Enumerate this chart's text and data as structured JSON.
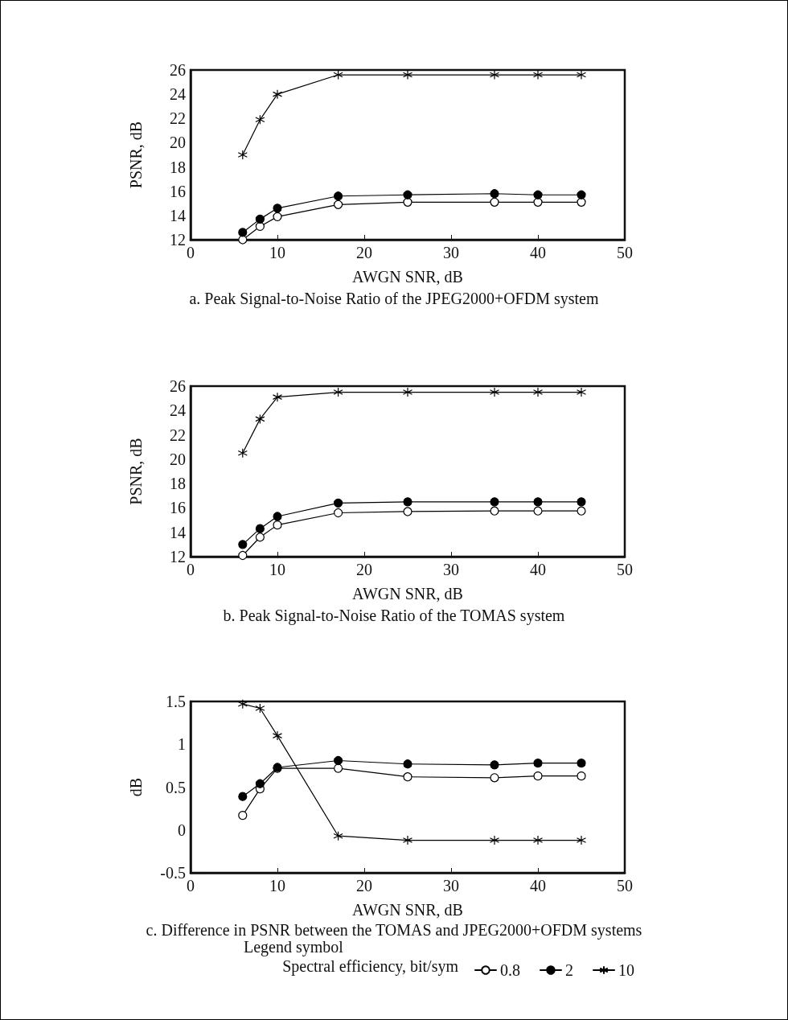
{
  "chart_data": [
    {
      "type": "line",
      "title": "a. Peak Signal-to-Noise Ratio of the JPEG2000+OFDM system",
      "xlabel": "AWGN SNR, dB",
      "ylabel": "PSNR, dB",
      "x": [
        6,
        8,
        10,
        17,
        25,
        35,
        40,
        45
      ],
      "xlim": [
        0,
        50
      ],
      "xticks": [
        0,
        10,
        20,
        30,
        40,
        50
      ],
      "ylim": [
        12,
        26
      ],
      "yticks": [
        12,
        14,
        16,
        18,
        20,
        22,
        24,
        26
      ],
      "grid": false,
      "legend": false,
      "line_style": "solid",
      "series": [
        {
          "color": "#ffffff",
          "marker": "circle",
          "values": [
            12.0,
            13.1,
            13.9,
            14.9,
            15.1,
            15.1,
            15.1,
            15.1
          ]
        },
        {
          "color": "#000000",
          "marker": "circle",
          "values": [
            12.6,
            13.7,
            14.6,
            15.6,
            15.7,
            15.8,
            15.7,
            15.7
          ]
        },
        {
          "color": "#000000",
          "marker": "cross",
          "values": [
            19.0,
            21.9,
            24.0,
            25.6,
            25.6,
            25.6,
            25.6,
            25.6
          ]
        }
      ]
    },
    {
      "type": "line",
      "title": "b. Peak Signal-to-Noise Ratio of the TOMAS system",
      "xlabel": "AWGN SNR, dB",
      "ylabel": "PSNR, dB",
      "x": [
        6,
        8,
        10,
        17,
        25,
        35,
        40,
        45
      ],
      "xlim": [
        0,
        50
      ],
      "xticks": [
        0,
        10,
        20,
        30,
        40,
        50
      ],
      "ylim": [
        12,
        26
      ],
      "yticks": [
        12,
        14,
        16,
        18,
        20,
        22,
        24,
        26
      ],
      "grid": false,
      "legend": false,
      "line_style": "solid",
      "series": [
        {
          "color": "#ffffff",
          "marker": "circle",
          "values": [
            12.1,
            13.6,
            14.6,
            15.6,
            15.7,
            15.75,
            15.75,
            15.75
          ]
        },
        {
          "color": "#000000",
          "marker": "circle",
          "values": [
            13.0,
            14.3,
            15.3,
            16.4,
            16.5,
            16.5,
            16.5,
            16.5
          ]
        },
        {
          "color": "#000000",
          "marker": "cross",
          "values": [
            20.5,
            23.3,
            25.1,
            25.5,
            25.5,
            25.5,
            25.5,
            25.5
          ]
        }
      ]
    },
    {
      "type": "line",
      "title": "c. Difference in PSNR between the TOMAS and JPEG2000+OFDM systems",
      "xlabel": "AWGN SNR, dB",
      "ylabel": "dB",
      "x": [
        6,
        8,
        10,
        17,
        25,
        35,
        40,
        45
      ],
      "xlim": [
        0,
        50
      ],
      "xticks": [
        0,
        10,
        20,
        30,
        40,
        50
      ],
      "ylim": [
        -0.5,
        1.5
      ],
      "yticks": [
        -0.5,
        0,
        0.5,
        1,
        1.5
      ],
      "grid": false,
      "legend": "bottom",
      "legend_title": "Spectral efficiency, bit/sym",
      "annotations": [
        "Legend symbol"
      ],
      "line_style": "solid",
      "series": [
        {
          "name": "0.8",
          "color": "#ffffff",
          "marker": "circle",
          "values": [
            0.17,
            0.48,
            0.72,
            0.72,
            0.62,
            0.61,
            0.63,
            0.63
          ]
        },
        {
          "name": "2",
          "color": "#000000",
          "marker": "circle",
          "values": [
            0.39,
            0.54,
            0.73,
            0.81,
            0.77,
            0.76,
            0.78,
            0.78
          ]
        },
        {
          "name": "10",
          "color": "#000000",
          "marker": "cross",
          "values": [
            1.47,
            1.42,
            1.1,
            -0.07,
            -0.12,
            -0.12,
            -0.12,
            -0.12
          ]
        }
      ]
    }
  ]
}
